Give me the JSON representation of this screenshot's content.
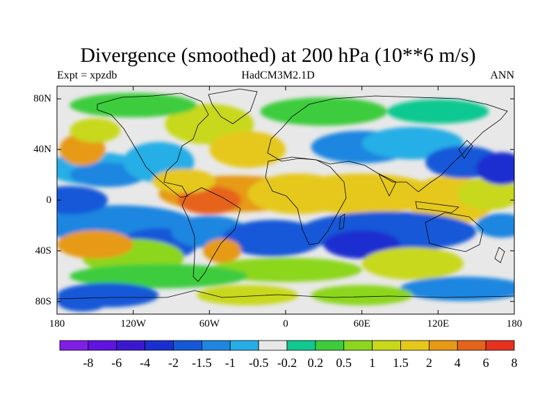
{
  "title": "Divergence (smoothed) at 200 hPa (10**6 m/s)",
  "subtitle_left": "Expt = xpzdb",
  "subtitle_center": "HadCM3M2.1D",
  "subtitle_right": "ANN",
  "y_axis": {
    "ticks": [
      {
        "lat": 80,
        "label": "80N"
      },
      {
        "lat": 40,
        "label": "40N"
      },
      {
        "lat": 0,
        "label": "0"
      },
      {
        "lat": -40,
        "label": "40S"
      },
      {
        "lat": -80,
        "label": "80S"
      }
    ]
  },
  "x_axis": {
    "ticks": [
      {
        "lon": -180,
        "label": "180"
      },
      {
        "lon": -120,
        "label": "120W"
      },
      {
        "lon": -60,
        "label": "60W"
      },
      {
        "lon": 0,
        "label": "0"
      },
      {
        "lon": 60,
        "label": "60E"
      },
      {
        "lon": 120,
        "label": "120E"
      },
      {
        "lon": 180,
        "label": "180"
      }
    ]
  },
  "colorbar": {
    "colors": [
      "#7f1fe6",
      "#5f14e0",
      "#3b18cf",
      "#1a2fcf",
      "#1559d8",
      "#1f86e0",
      "#25aee6",
      "#e8e8e8",
      "#10c890",
      "#3ccc3c",
      "#8cd61e",
      "#c8d81a",
      "#e6c81a",
      "#e69a14",
      "#e6641a",
      "#e6321e"
    ],
    "labels": [
      "-8",
      "-6",
      "-4",
      "-2",
      "-1.5",
      "-1",
      "-0.5",
      "-0.2",
      "0.2",
      "0.5",
      "1",
      "1.5",
      "2",
      "4",
      "6",
      "8"
    ]
  },
  "colors": {
    "neutral": "#e8e8e8",
    "coast": "#000000"
  }
}
